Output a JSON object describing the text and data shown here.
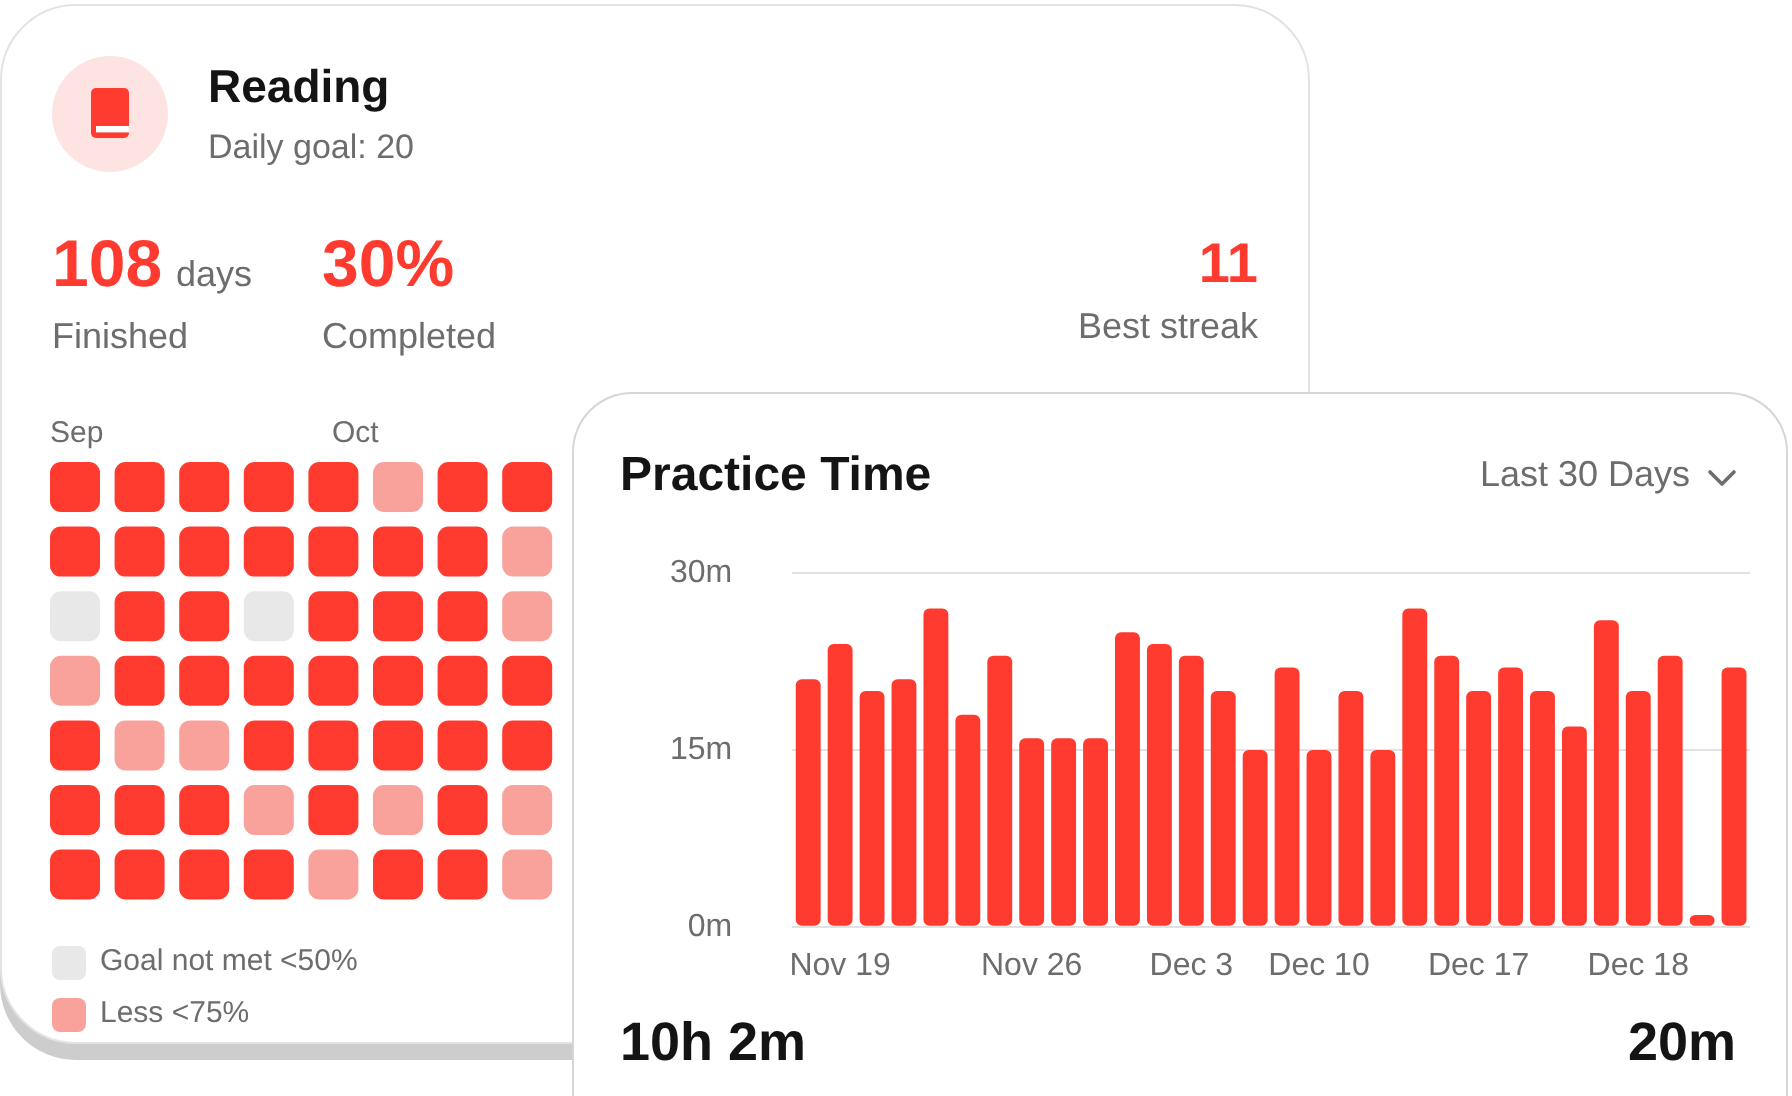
{
  "chart_data": [
    {
      "type": "other",
      "title": "Reading",
      "subtitle": "Daily goal: 20",
      "annotations": [
        "108",
        "days",
        "Finished",
        "30%",
        "Completed",
        "11",
        "Best streak",
        "Sep",
        "Oct",
        "Goal not met <50%",
        "Less <75%"
      ]
    },
    {
      "type": "bar",
      "title": "Practice Time",
      "subtitle": "Last 30 Days",
      "annotations": [
        "10h 2m",
        "20m"
      ],
      "categories": [
        null,
        "Nov 19",
        null,
        null,
        null,
        null,
        null,
        "Nov 26",
        null,
        null,
        null,
        null,
        "Dec 3",
        null,
        null,
        null,
        "Dec 10",
        null,
        null,
        null,
        null,
        "Dec 17",
        null,
        null,
        null,
        null,
        "Dec 18",
        null,
        null,
        null
      ],
      "values": [
        21,
        24,
        20,
        21,
        27,
        18,
        23,
        16,
        16,
        16,
        25,
        24,
        23,
        20,
        15,
        22,
        15,
        20,
        15,
        27,
        23,
        20,
        22,
        20,
        17,
        26,
        20,
        23,
        1,
        22
      ],
      "color": "#ff3b30",
      "ylim": [
        0,
        30
      ],
      "yticks": [
        {
          "value": 0,
          "label": "0m"
        },
        {
          "value": 15,
          "label": "15m"
        },
        {
          "value": 30,
          "label": "30m"
        }
      ],
      "grid": "y",
      "legend": false
    }
  ]
}
